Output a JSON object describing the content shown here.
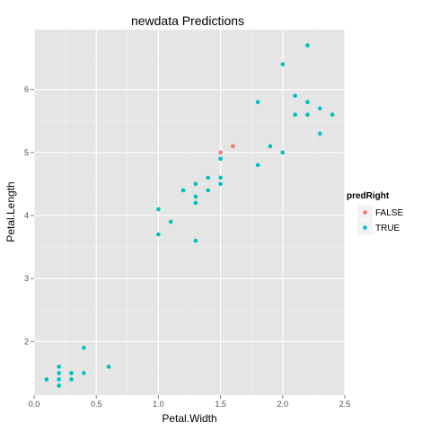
{
  "chart_data": {
    "type": "scatter",
    "title": "newdata Predictions",
    "xlabel": "Petal.Width",
    "ylabel": "Petal.Length",
    "xlim": [
      0,
      2.5
    ],
    "ylim": [
      1.15,
      6.95
    ],
    "x_ticks": [
      "0.0",
      "0.5",
      "1.0",
      "1.5",
      "2.0",
      "2.5"
    ],
    "y_ticks": [
      "2",
      "3",
      "4",
      "5",
      "6"
    ],
    "grid": true,
    "legend": {
      "title": "predRight",
      "position": "right",
      "entries": [
        {
          "label": "FALSE",
          "color": "#F8766D"
        },
        {
          "label": "TRUE",
          "color": "#00BFC4"
        }
      ]
    },
    "series": [
      {
        "name": "FALSE",
        "color": "#F8766D",
        "points": [
          [
            1.5,
            5.0
          ],
          [
            1.6,
            5.1
          ]
        ]
      },
      {
        "name": "TRUE",
        "color": "#00BFC4",
        "points": [
          [
            0.1,
            1.4
          ],
          [
            0.2,
            1.3
          ],
          [
            0.2,
            1.4
          ],
          [
            0.2,
            1.5
          ],
          [
            0.2,
            1.6
          ],
          [
            0.3,
            1.4
          ],
          [
            0.3,
            1.5
          ],
          [
            0.4,
            1.5
          ],
          [
            0.4,
            1.9
          ],
          [
            0.6,
            1.6
          ],
          [
            1.0,
            3.7
          ],
          [
            1.0,
            4.1
          ],
          [
            1.1,
            3.9
          ],
          [
            1.2,
            4.4
          ],
          [
            1.3,
            3.6
          ],
          [
            1.3,
            4.2
          ],
          [
            1.3,
            4.3
          ],
          [
            1.3,
            4.5
          ],
          [
            1.4,
            4.4
          ],
          [
            1.4,
            4.6
          ],
          [
            1.5,
            4.5
          ],
          [
            1.5,
            4.6
          ],
          [
            1.5,
            4.9
          ],
          [
            1.8,
            4.8
          ],
          [
            1.8,
            5.8
          ],
          [
            1.9,
            5.1
          ],
          [
            2.0,
            5.0
          ],
          [
            2.0,
            6.4
          ],
          [
            2.1,
            5.6
          ],
          [
            2.1,
            5.9
          ],
          [
            2.2,
            5.6
          ],
          [
            2.2,
            5.8
          ],
          [
            2.2,
            6.7
          ],
          [
            2.3,
            5.3
          ],
          [
            2.3,
            5.7
          ],
          [
            2.4,
            5.6
          ]
        ]
      }
    ]
  },
  "style": {
    "panel_bg": "#E5E5E5",
    "grid_major": "#FFFFFF",
    "grid_minor": "#F2F2F2",
    "tick_color": "#7F7F7F"
  }
}
